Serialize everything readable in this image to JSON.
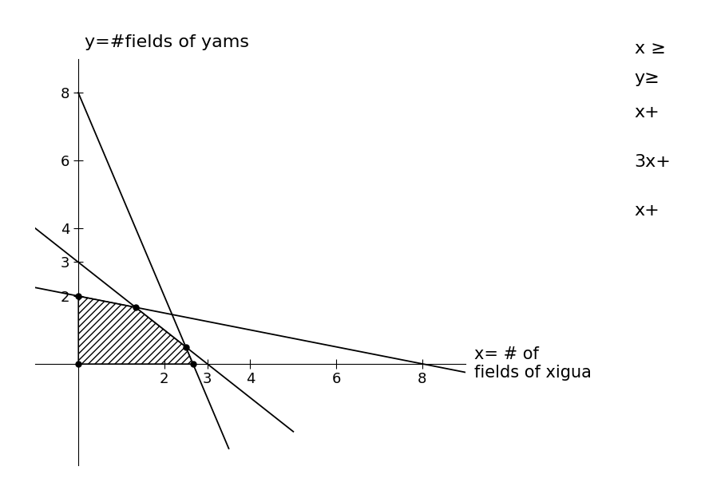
{
  "chart_data": {
    "type": "line",
    "x_label": "x= # of\nfields of xigua",
    "y_label": "y=#fields of yams",
    "xlim": [
      -1,
      9
    ],
    "ylim": [
      -3,
      9
    ],
    "xticks": [
      2,
      3,
      4,
      6,
      8
    ],
    "yticks": [
      2,
      3,
      4,
      6,
      8
    ],
    "grid": false,
    "color": "#000000",
    "annotations": [
      "x ≥",
      "y≥",
      "x+",
      "3x+",
      "x+"
    ],
    "series": [
      {
        "type": "line",
        "color": "#000000",
        "line_style": "solid",
        "x": [
          0,
          3.5
        ],
        "values": [
          8,
          -2.5
        ]
      },
      {
        "type": "line",
        "color": "#000000",
        "line_style": "solid",
        "x": [
          -1,
          5
        ],
        "values": [
          4,
          -2
        ]
      },
      {
        "type": "line",
        "color": "#000000",
        "line_style": "solid",
        "x": [
          -1,
          9
        ],
        "values": [
          2.25,
          -0.25
        ]
      },
      {
        "type": "area",
        "color": "#000000",
        "marker": "o",
        "x": [
          0,
          0,
          1.33,
          2.5,
          2.67
        ],
        "values": [
          0,
          2,
          1.67,
          0.5,
          0
        ]
      }
    ]
  }
}
